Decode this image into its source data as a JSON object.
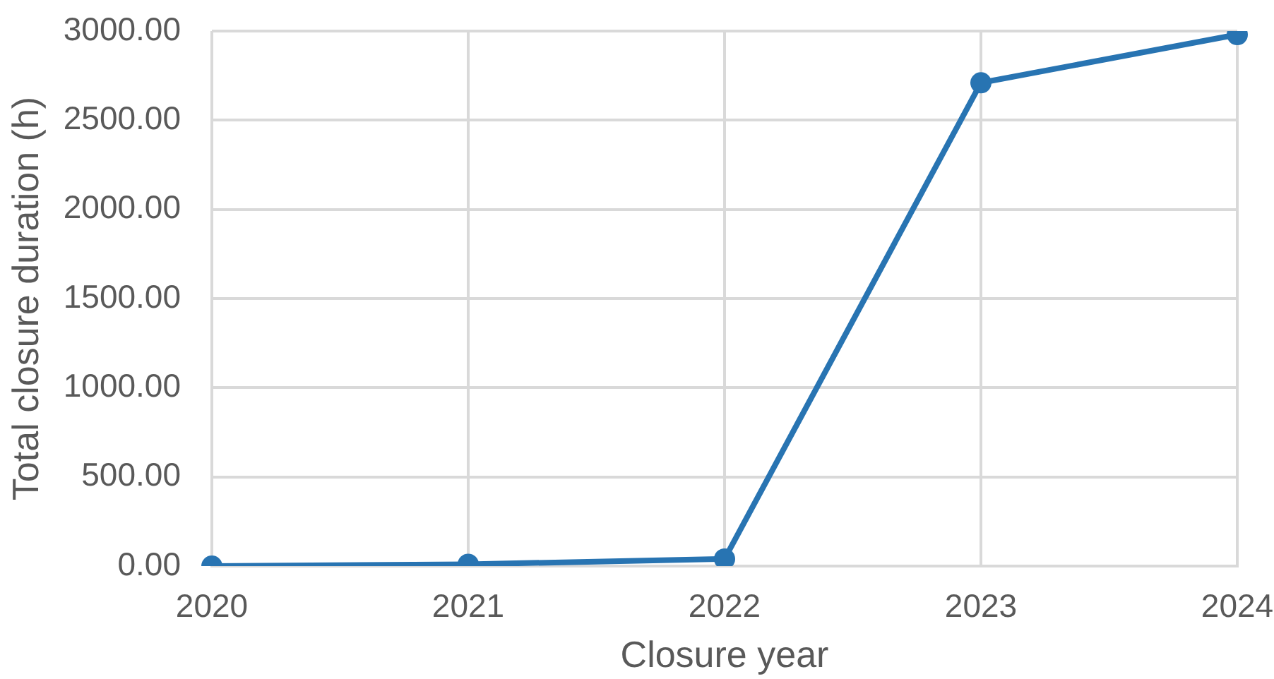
{
  "chart_data": {
    "type": "line",
    "xlabel": "Closure year",
    "ylabel": "Total closure duration (h)",
    "categories": [
      "2020",
      "2021",
      "2022",
      "2023",
      "2024"
    ],
    "series": [
      {
        "color": "#2874b2",
        "values": [
          0,
          10,
          40,
          2710,
          2980
        ]
      }
    ],
    "ylim": [
      0,
      3000
    ],
    "yticks": [
      {
        "value": 0,
        "label": "0.00"
      },
      {
        "value": 500,
        "label": "500.00"
      },
      {
        "value": 1000,
        "label": "1000.00"
      },
      {
        "value": 1500,
        "label": "1500.00"
      },
      {
        "value": 2000,
        "label": "2000.00"
      },
      {
        "value": 2500,
        "label": "2500.00"
      },
      {
        "value": 3000,
        "label": "3000.00"
      }
    ],
    "grid": true,
    "legend": false,
    "marker": "circle",
    "line_style": "solid"
  }
}
